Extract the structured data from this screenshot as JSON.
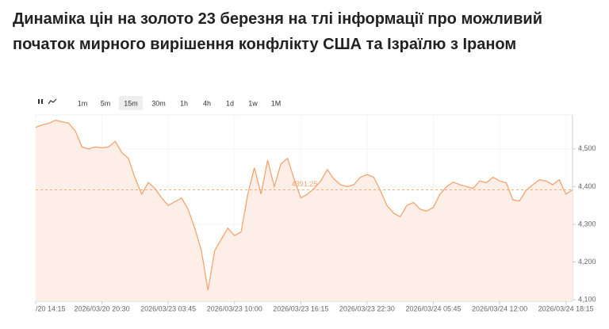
{
  "chart_data": {
    "type": "line",
    "title": [
      "Динаміка цін на золото 23 березня на тлі інформації про можливий",
      "початок мирного вирішення конфлікту США та Ізраїлю з Іраном"
    ],
    "timeframes": [
      "1m",
      "5m",
      "15m",
      "30m",
      "1h",
      "4h",
      "1d",
      "1w",
      "1M"
    ],
    "active_timeframe": 2,
    "categories": [
      "/20 14:15",
      null,
      null,
      null,
      null,
      null,
      null,
      null,
      null,
      null,
      "2026/03/20 20:30",
      null,
      null,
      null,
      null,
      null,
      null,
      null,
      null,
      null,
      "2026/03/23 03:45",
      null,
      null,
      null,
      null,
      null,
      null,
      null,
      null,
      null,
      "2026/03/23 10:00",
      null,
      null,
      null,
      null,
      null,
      null,
      null,
      null,
      null,
      "2026/03/23 16:15",
      null,
      null,
      null,
      null,
      null,
      null,
      null,
      null,
      null,
      "2026/03/23 22:30",
      null,
      null,
      null,
      null,
      null,
      null,
      null,
      null,
      null,
      "2026/03/24 05:45",
      null,
      null,
      null,
      null,
      null,
      null,
      null,
      null,
      null,
      "2026/03/24 12:00",
      null,
      null,
      null,
      null,
      null,
      null,
      null,
      null,
      null,
      "2026/03/24 18:15",
      null
    ],
    "values": [
      4557,
      4564,
      4568,
      4576,
      4572,
      4568,
      4547,
      4505,
      4500,
      4505,
      4503,
      4505,
      4520,
      4490,
      4475,
      4422,
      4380,
      4411,
      4395,
      4370,
      4350,
      4360,
      4370,
      4340,
      4290,
      4230,
      4125,
      4230,
      4260,
      4290,
      4270,
      4280,
      4380,
      4450,
      4380,
      4470,
      4400,
      4460,
      4475,
      4420,
      4370,
      4380,
      4395,
      4415,
      4445,
      4420,
      4405,
      4400,
      4405,
      4425,
      4432,
      4425,
      4390,
      4350,
      4330,
      4320,
      4350,
      4358,
      4340,
      4335,
      4345,
      4380,
      4400,
      4412,
      4405,
      4400,
      4395,
      4415,
      4410,
      4425,
      4415,
      4410,
      4365,
      4362,
      4390,
      4405,
      4418,
      4415,
      4405,
      4418,
      4380,
      4391.25
    ],
    "current_price": 4391.25,
    "color": "#f4a46e",
    "area_color": "#fdefe7",
    "ylim": [
      4096,
      4590
    ],
    "yticks": [
      {
        "value": 4100,
        "label": "4,100"
      },
      {
        "value": 4200,
        "label": "4,200"
      },
      {
        "value": 4300,
        "label": "4,300"
      },
      {
        "value": 4400,
        "label": "4,400"
      },
      {
        "value": 4500,
        "label": "4,500"
      }
    ],
    "grid": true
  }
}
